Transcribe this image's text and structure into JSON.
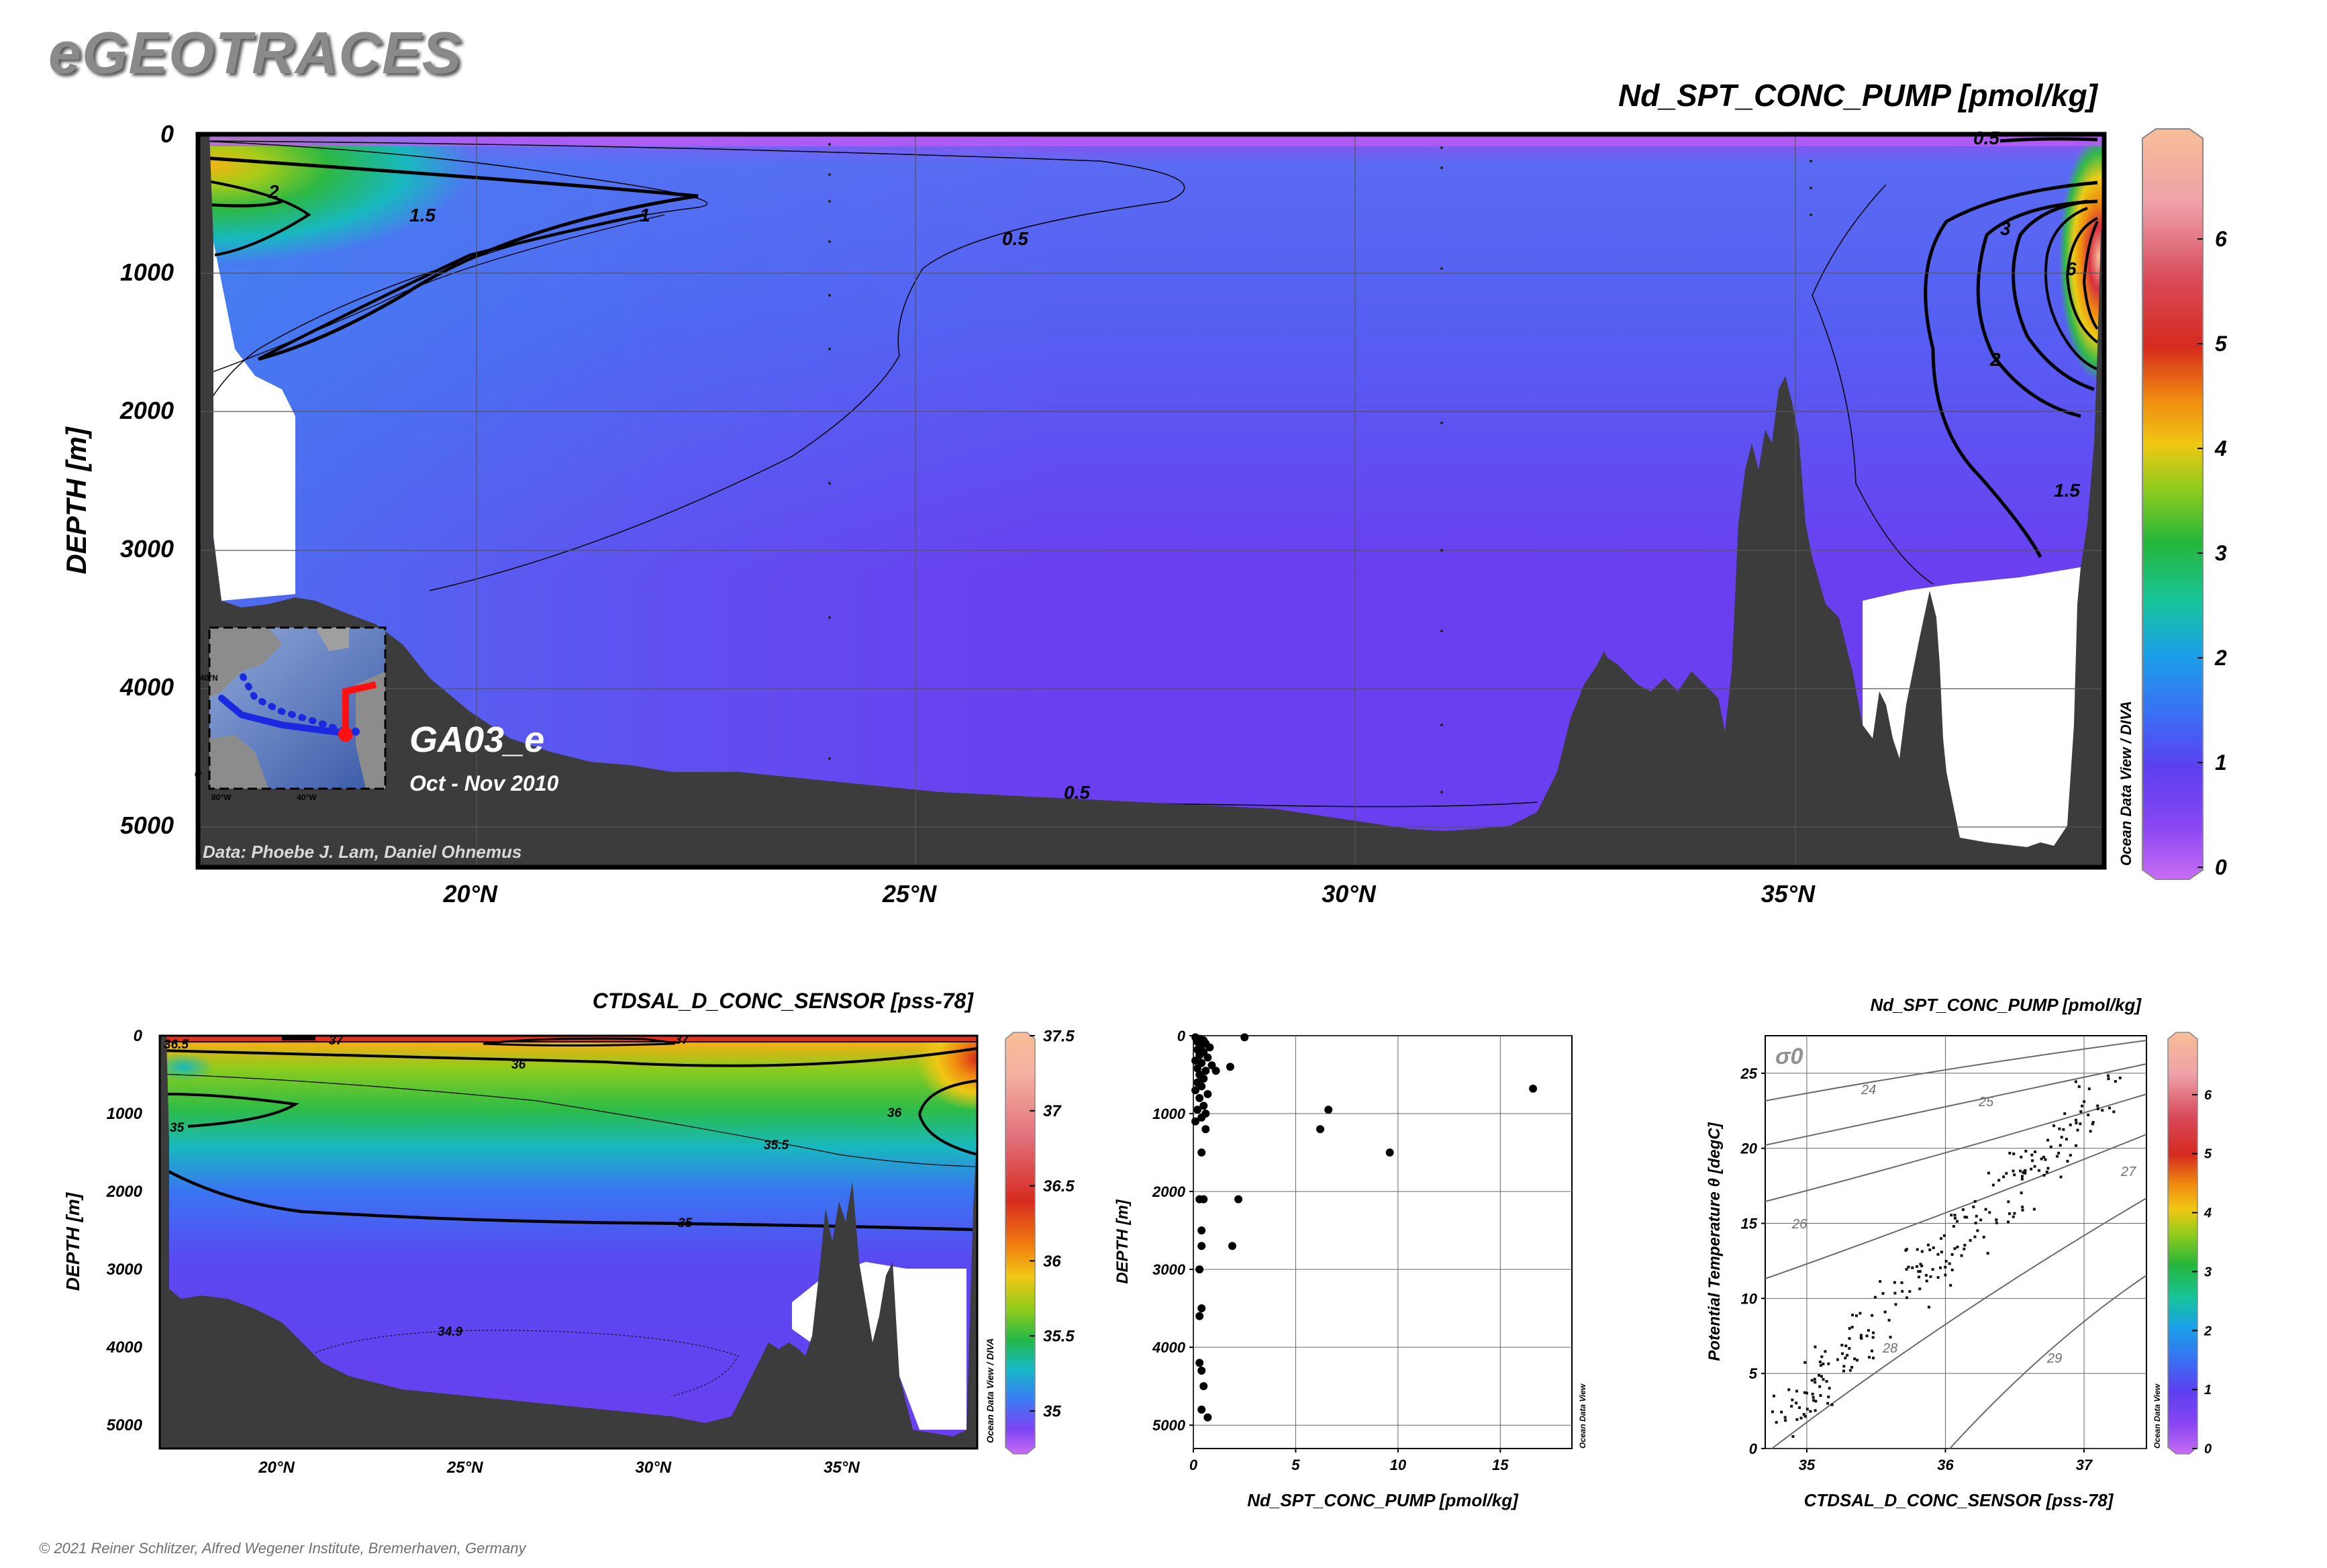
{
  "brand": "eGEOTRACES",
  "copyright": "© 2021 Reiner Schlitzer, Alfred Wegener Institute, Bremerhaven, Germany",
  "colors": {
    "bathymetry": "#3c3c3c",
    "frame": "#000000",
    "grid": "#555555"
  },
  "main_section": {
    "title": "Nd_SPT_CONC_PUMP [pmol/kg]",
    "ylabel": "DEPTH [m]",
    "credit": "Data: Phoebe J. Lam, Daniel Ohnemus",
    "cruise": "GA03_e",
    "period": "Oct - Nov 2010",
    "software": "Ocean Data View / DIVA",
    "inset_map": {
      "lat_label": "40°N",
      "lat_label2": "0°",
      "lon_labels": [
        "80°W",
        "40°W"
      ]
    },
    "colorbar": {
      "ticks": [
        "0",
        "1",
        "2",
        "3",
        "4",
        "5",
        "6"
      ],
      "min": 0,
      "max": 7
    }
  },
  "bottom_left": {
    "title": "CTDSAL_D_CONC_SENSOR [pss-78]",
    "ylabel": "DEPTH [m]",
    "software": "Ocean Data View / DIVA",
    "colorbar": {
      "ticks": [
        "35",
        "35.5",
        "36",
        "36.5",
        "37",
        "37.5"
      ],
      "min": 34.75,
      "max": 37.5
    }
  },
  "bottom_middle": {
    "xlabel": "Nd_SPT_CONC_PUMP [pmol/kg]",
    "ylabel": "DEPTH [m]",
    "software": "Ocean Data View"
  },
  "bottom_right": {
    "title": "Nd_SPT_CONC_PUMP [pmol/kg]",
    "xlabel": "CTDSAL_D_CONC_SENSOR [pss-78]",
    "ylabel": "Potential Temperature θ [degC]",
    "sigma_label": "σ0",
    "software": "Ocean Data View",
    "colorbar": {
      "ticks": [
        "0",
        "1",
        "2",
        "3",
        "4",
        "5",
        "6"
      ],
      "min": 0,
      "max": 7
    }
  },
  "chart_data": [
    {
      "type": "heatmap",
      "title": "Nd_SPT_CONC_PUMP [pmol/kg]",
      "ylabel": "DEPTH [m]",
      "x_ticks": [
        "20°N",
        "25°N",
        "30°N",
        "35°N"
      ],
      "x_tick_values": [
        20,
        25,
        30,
        35
      ],
      "y_ticks": [
        "0",
        "1000",
        "2000",
        "3000",
        "4000",
        "5000"
      ],
      "y_tick_values": [
        0,
        1000,
        2000,
        3000,
        4000,
        5000
      ],
      "xlim": [
        16.9,
        38.6
      ],
      "ylim": [
        5300,
        0
      ],
      "contour_labels": [
        {
          "text": "2",
          "x": 17.8,
          "y": 400
        },
        {
          "text": "1.5",
          "x": 18.5,
          "y": 570
        },
        {
          "text": "1",
          "x": 22.0,
          "y": 560
        },
        {
          "text": "0.5",
          "x": 26.1,
          "y": 730
        },
        {
          "text": "0.5",
          "x": 30.3,
          "y": 4550
        },
        {
          "text": "0.5",
          "x": 27.0,
          "y": 4750
        },
        {
          "text": "3",
          "x": 37.25,
          "y": 670
        },
        {
          "text": "6",
          "x": 37.7,
          "y": 960
        },
        {
          "text": "2",
          "x": 37.2,
          "y": 1640
        },
        {
          "text": "1.5",
          "x": 37.5,
          "y": 2620
        },
        {
          "text": "0.5",
          "x": 36.9,
          "y": 30
        }
      ],
      "grid": true
    },
    {
      "type": "heatmap",
      "title": "CTDSAL_D_CONC_SENSOR [pss-78]",
      "ylabel": "DEPTH [m]",
      "x_ticks": [
        "20°N",
        "25°N",
        "30°N",
        "35°N"
      ],
      "x_tick_values": [
        20,
        25,
        30,
        35
      ],
      "y_ticks": [
        "0",
        "1000",
        "2000",
        "3000",
        "4000",
        "5000"
      ],
      "y_tick_values": [
        0,
        1000,
        2000,
        3000,
        4000,
        5000
      ],
      "xlim": [
        16.9,
        38.6
      ],
      "ylim": [
        5300,
        0
      ],
      "contour_labels": [
        {
          "text": "36.5",
          "x": 17.3,
          "y": 50
        },
        {
          "text": "37",
          "x": 18.5,
          "y": 20
        },
        {
          "text": "37",
          "x": 24.5,
          "y": 20
        },
        {
          "text": "36",
          "x": 26.3,
          "y": 330
        },
        {
          "text": "36",
          "x": 35.0,
          "y": 990
        },
        {
          "text": "35",
          "x": 17.4,
          "y": 1170
        },
        {
          "text": "35.5",
          "x": 32.1,
          "y": 1440
        },
        {
          "text": "35",
          "x": 30.8,
          "y": 2440
        },
        {
          "text": "34.9",
          "x": 24.5,
          "y": 3810
        }
      ],
      "grid": false
    },
    {
      "type": "scatter",
      "xlabel": "Nd_SPT_CONC_PUMP [pmol/kg]",
      "ylabel": "DEPTH [m]",
      "x_ticks": [
        "0",
        "5",
        "10",
        "15"
      ],
      "x_tick_values": [
        0,
        5,
        10,
        15
      ],
      "y_ticks": [
        "0",
        "1000",
        "2000",
        "3000",
        "4000",
        "5000"
      ],
      "y_tick_values": [
        0,
        1000,
        2000,
        3000,
        4000,
        5000
      ],
      "xlim": [
        0,
        18.5
      ],
      "ylim": [
        5300,
        0
      ],
      "points": [
        [
          0.1,
          20
        ],
        [
          0.3,
          40
        ],
        [
          0.5,
          60
        ],
        [
          0.2,
          80
        ],
        [
          0.6,
          100
        ],
        [
          0.4,
          130
        ],
        [
          0.8,
          150
        ],
        [
          0.2,
          180
        ],
        [
          0.5,
          210
        ],
        [
          0.3,
          250
        ],
        [
          0.7,
          280
        ],
        [
          0.1,
          320
        ],
        [
          0.4,
          350
        ],
        [
          0.9,
          380
        ],
        [
          0.2,
          420
        ],
        [
          0.6,
          450
        ],
        [
          0.3,
          500
        ],
        [
          0.5,
          550
        ],
        [
          0.2,
          600
        ],
        [
          0.4,
          650
        ],
        [
          0.1,
          700
        ],
        [
          0.7,
          750
        ],
        [
          0.3,
          800
        ],
        [
          0.5,
          900
        ],
        [
          0.2,
          950
        ],
        [
          0.6,
          1000
        ],
        [
          0.4,
          1050
        ],
        [
          0.1,
          1100
        ],
        [
          0.6,
          1200
        ],
        [
          0.4,
          1500
        ],
        [
          0.3,
          2100
        ],
        [
          0.5,
          2100
        ],
        [
          0.4,
          2500
        ],
        [
          0.4,
          2700
        ],
        [
          0.3,
          3000
        ],
        [
          0.4,
          3500
        ],
        [
          0.3,
          3600
        ],
        [
          0.3,
          4200
        ],
        [
          0.4,
          4300
        ],
        [
          0.5,
          4500
        ],
        [
          0.4,
          4800
        ],
        [
          0.7,
          4900
        ],
        [
          1.1,
          450
        ],
        [
          1.8,
          400
        ],
        [
          2.5,
          20
        ],
        [
          1.9,
          2700
        ],
        [
          2.2,
          2100
        ],
        [
          6.2,
          1200
        ],
        [
          6.6,
          950
        ],
        [
          9.6,
          1500
        ],
        [
          16.6,
          680
        ]
      ],
      "grid": true
    },
    {
      "type": "scatter",
      "title": "Nd_SPT_CONC_PUMP [pmol/kg]",
      "xlabel": "CTDSAL_D_CONC_SENSOR [pss-78]",
      "ylabel": "Potential Temperature θ [degC]",
      "x_ticks": [
        "35",
        "36",
        "37"
      ],
      "x_tick_values": [
        35,
        36,
        37
      ],
      "y_ticks": [
        "0",
        "5",
        "10",
        "15",
        "20",
        "25"
      ],
      "y_tick_values": [
        0,
        5,
        10,
        15,
        20,
        25
      ],
      "xlim": [
        34.7,
        37.45
      ],
      "ylim": [
        0,
        27.5
      ],
      "isopycnal_labels": [
        "24",
        "25",
        "26",
        "27",
        "28",
        "29"
      ],
      "grid": true
    }
  ]
}
